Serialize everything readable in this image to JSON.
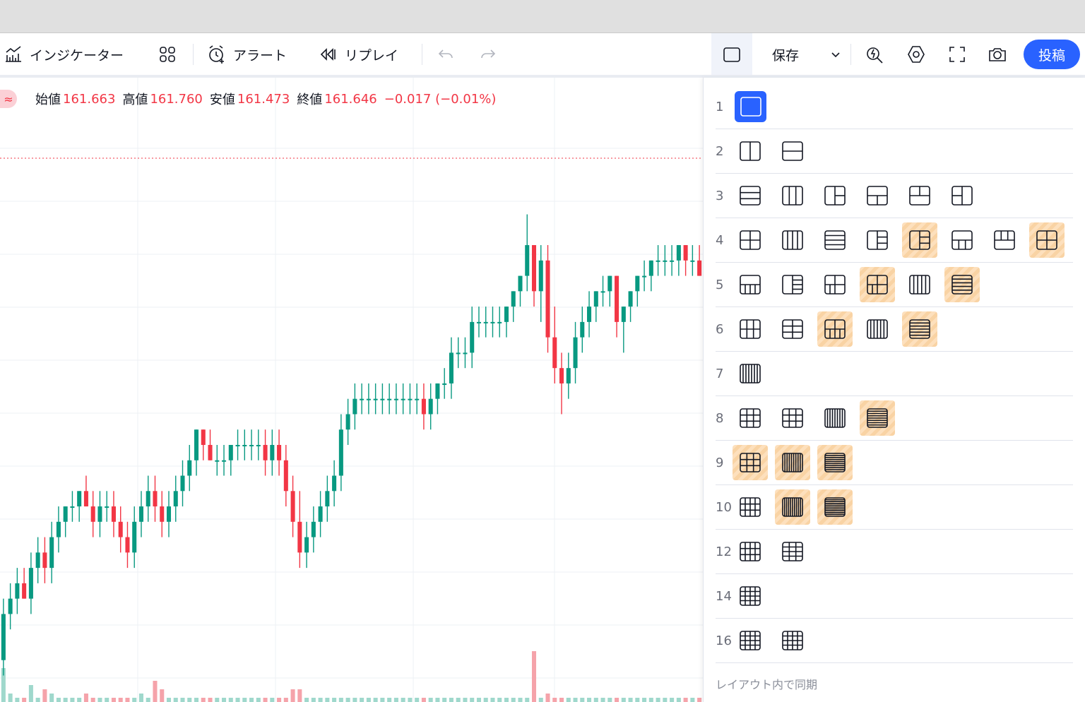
{
  "toolbar": {
    "indicators_label": "インジケーター",
    "alert_label": "アラート",
    "replay_label": "リプレイ",
    "save_label": "保存",
    "post_label": "投稿",
    "icons": [
      "indicators-icon",
      "templates-icon",
      "alert-icon",
      "replay-icon",
      "undo-icon",
      "redo-icon",
      "layout-single-icon",
      "chevron-down-icon",
      "quick-search-icon",
      "settings-icon",
      "fullscreen-icon",
      "camera-icon"
    ]
  },
  "legend": {
    "badge": "≈",
    "open_label": "始値",
    "open_value": "161.663",
    "high_label": "高値",
    "high_value": "161.760",
    "low_label": "安値",
    "low_value": "161.473",
    "close_label": "終値",
    "close_value": "161.646",
    "change": "−0.017 (−0.01%)"
  },
  "layout_panel": {
    "rows": [
      {
        "count": "1",
        "options": [
          {
            "icon": "single",
            "state": "active"
          }
        ]
      },
      {
        "count": "2",
        "options": [
          {
            "icon": "2v"
          },
          {
            "icon": "2h"
          }
        ]
      },
      {
        "count": "3",
        "options": [
          {
            "icon": "3h"
          },
          {
            "icon": "3v"
          },
          {
            "icon": "3-left-big"
          },
          {
            "icon": "3-top-big"
          },
          {
            "icon": "3-bottom-big"
          },
          {
            "icon": "3-right-big"
          }
        ]
      },
      {
        "count": "4",
        "options": [
          {
            "icon": "4grid"
          },
          {
            "icon": "4v"
          },
          {
            "icon": "4h"
          },
          {
            "icon": "4-left-big"
          },
          {
            "icon": "4-left-big-alt",
            "state": "locked"
          },
          {
            "icon": "4-top-big"
          },
          {
            "icon": "4-bottom-big"
          },
          {
            "icon": "4-mid-big",
            "state": "locked"
          }
        ]
      },
      {
        "count": "5",
        "options": [
          {
            "icon": "5-top-big"
          },
          {
            "icon": "5-left-big"
          },
          {
            "icon": "5-mixed"
          },
          {
            "icon": "5-mixed-alt",
            "state": "locked"
          },
          {
            "icon": "5v"
          },
          {
            "icon": "5h",
            "state": "locked"
          }
        ]
      },
      {
        "count": "6",
        "options": [
          {
            "icon": "6grid"
          },
          {
            "icon": "6grid-h"
          },
          {
            "icon": "6-mixed",
            "state": "locked"
          },
          {
            "icon": "6v"
          },
          {
            "icon": "6h",
            "state": "locked"
          }
        ]
      },
      {
        "count": "7",
        "options": [
          {
            "icon": "7v"
          }
        ]
      },
      {
        "count": "8",
        "options": [
          {
            "icon": "8grid"
          },
          {
            "icon": "8grid-h"
          },
          {
            "icon": "8v"
          },
          {
            "icon": "8h",
            "state": "locked"
          }
        ]
      },
      {
        "count": "9",
        "options": [
          {
            "icon": "9grid",
            "state": "locked"
          },
          {
            "icon": "9v",
            "state": "locked"
          },
          {
            "icon": "9h",
            "state": "locked"
          }
        ]
      },
      {
        "count": "10",
        "options": [
          {
            "icon": "10grid"
          },
          {
            "icon": "10v",
            "state": "locked"
          },
          {
            "icon": "10h",
            "state": "locked"
          }
        ]
      },
      {
        "count": "12",
        "options": [
          {
            "icon": "12grid"
          },
          {
            "icon": "12grid-h"
          }
        ]
      },
      {
        "count": "14",
        "options": [
          {
            "icon": "14grid"
          }
        ]
      },
      {
        "count": "16",
        "options": [
          {
            "icon": "16grid"
          },
          {
            "icon": "16grid-h"
          }
        ]
      }
    ],
    "sync_label": "レイアウト内で同期"
  },
  "colors": {
    "accent": "#2962ff",
    "up": "#089981",
    "down": "#f23645",
    "locked": "#fde0bd"
  },
  "chart_data": {
    "type": "candlestick",
    "y_range": [
      161.44,
      161.78
    ],
    "candles": [
      [
        161.47,
        161.51,
        161.46,
        161.5
      ],
      [
        161.5,
        161.52,
        161.49,
        161.51
      ],
      [
        161.51,
        161.53,
        161.5,
        161.52
      ],
      [
        161.52,
        161.53,
        161.51,
        161.51
      ],
      [
        161.51,
        161.54,
        161.5,
        161.53
      ],
      [
        161.53,
        161.55,
        161.52,
        161.54
      ],
      [
        161.54,
        161.55,
        161.52,
        161.53
      ],
      [
        161.53,
        161.56,
        161.52,
        161.55
      ],
      [
        161.55,
        161.57,
        161.54,
        161.56
      ],
      [
        161.56,
        161.57,
        161.55,
        161.57
      ],
      [
        161.57,
        161.58,
        161.56,
        161.57
      ],
      [
        161.57,
        161.58,
        161.56,
        161.58
      ],
      [
        161.58,
        161.59,
        161.57,
        161.57
      ],
      [
        161.57,
        161.58,
        161.55,
        161.56
      ],
      [
        161.56,
        161.58,
        161.55,
        161.57
      ],
      [
        161.57,
        161.58,
        161.56,
        161.57
      ],
      [
        161.57,
        161.58,
        161.55,
        161.56
      ],
      [
        161.56,
        161.57,
        161.54,
        161.55
      ],
      [
        161.55,
        161.56,
        161.53,
        161.54
      ],
      [
        161.54,
        161.57,
        161.53,
        161.56
      ],
      [
        161.56,
        161.58,
        161.55,
        161.57
      ],
      [
        161.57,
        161.59,
        161.56,
        161.58
      ],
      [
        161.58,
        161.59,
        161.56,
        161.57
      ],
      [
        161.57,
        161.58,
        161.55,
        161.56
      ],
      [
        161.56,
        161.58,
        161.55,
        161.57
      ],
      [
        161.57,
        161.59,
        161.56,
        161.58
      ],
      [
        161.58,
        161.6,
        161.57,
        161.59
      ],
      [
        161.59,
        161.61,
        161.58,
        161.6
      ],
      [
        161.6,
        161.62,
        161.59,
        161.62
      ],
      [
        161.62,
        161.62,
        161.6,
        161.61
      ],
      [
        161.61,
        161.62,
        161.6,
        161.6
      ],
      [
        161.6,
        161.61,
        161.59,
        161.6
      ],
      [
        161.6,
        161.61,
        161.59,
        161.6
      ],
      [
        161.6,
        161.61,
        161.59,
        161.61
      ],
      [
        161.61,
        161.62,
        161.6,
        161.61
      ],
      [
        161.61,
        161.62,
        161.6,
        161.61
      ],
      [
        161.61,
        161.62,
        161.6,
        161.61
      ],
      [
        161.61,
        161.62,
        161.6,
        161.61
      ],
      [
        161.61,
        161.62,
        161.59,
        161.6
      ],
      [
        161.6,
        161.62,
        161.59,
        161.61
      ],
      [
        161.61,
        161.62,
        161.59,
        161.6
      ],
      [
        161.6,
        161.61,
        161.57,
        161.58
      ],
      [
        161.58,
        161.59,
        161.55,
        161.56
      ],
      [
        161.56,
        161.58,
        161.53,
        161.54
      ],
      [
        161.54,
        161.56,
        161.53,
        161.55
      ],
      [
        161.55,
        161.57,
        161.54,
        161.56
      ],
      [
        161.56,
        161.58,
        161.55,
        161.57
      ],
      [
        161.57,
        161.59,
        161.56,
        161.58
      ],
      [
        161.58,
        161.6,
        161.57,
        161.59
      ],
      [
        161.59,
        161.63,
        161.58,
        161.62
      ],
      [
        161.62,
        161.64,
        161.61,
        161.63
      ],
      [
        161.63,
        161.65,
        161.62,
        161.64
      ],
      [
        161.64,
        161.65,
        161.63,
        161.64
      ],
      [
        161.64,
        161.65,
        161.63,
        161.64
      ],
      [
        161.64,
        161.65,
        161.63,
        161.64
      ],
      [
        161.64,
        161.65,
        161.63,
        161.64
      ],
      [
        161.64,
        161.65,
        161.63,
        161.64
      ],
      [
        161.64,
        161.65,
        161.63,
        161.64
      ],
      [
        161.64,
        161.65,
        161.63,
        161.64
      ],
      [
        161.64,
        161.65,
        161.63,
        161.64
      ],
      [
        161.64,
        161.65,
        161.63,
        161.64
      ],
      [
        161.64,
        161.65,
        161.62,
        161.63
      ],
      [
        161.63,
        161.65,
        161.62,
        161.64
      ],
      [
        161.64,
        161.65,
        161.63,
        161.65
      ],
      [
        161.65,
        161.66,
        161.64,
        161.65
      ],
      [
        161.65,
        161.68,
        161.64,
        161.67
      ],
      [
        161.67,
        161.68,
        161.66,
        161.67
      ],
      [
        161.67,
        161.68,
        161.66,
        161.67
      ],
      [
        161.67,
        161.7,
        161.66,
        161.69
      ],
      [
        161.69,
        161.7,
        161.68,
        161.69
      ],
      [
        161.69,
        161.7,
        161.68,
        161.69
      ],
      [
        161.69,
        161.7,
        161.68,
        161.69
      ],
      [
        161.69,
        161.7,
        161.68,
        161.69
      ],
      [
        161.69,
        161.7,
        161.68,
        161.7
      ],
      [
        161.7,
        161.71,
        161.69,
        161.71
      ],
      [
        161.71,
        161.72,
        161.7,
        161.72
      ],
      [
        161.72,
        161.76,
        161.71,
        161.74
      ],
      [
        161.74,
        161.74,
        161.7,
        161.71
      ],
      [
        161.71,
        161.74,
        161.69,
        161.73
      ],
      [
        161.73,
        161.74,
        161.67,
        161.68
      ],
      [
        161.68,
        161.7,
        161.65,
        161.66
      ],
      [
        161.66,
        161.67,
        161.63,
        161.65
      ],
      [
        161.65,
        161.67,
        161.64,
        161.66
      ],
      [
        161.66,
        161.69,
        161.65,
        161.68
      ],
      [
        161.68,
        161.7,
        161.67,
        161.69
      ],
      [
        161.69,
        161.71,
        161.68,
        161.7
      ],
      [
        161.7,
        161.71,
        161.69,
        161.71
      ],
      [
        161.71,
        161.72,
        161.7,
        161.71
      ],
      [
        161.71,
        161.72,
        161.7,
        161.72
      ],
      [
        161.72,
        161.72,
        161.68,
        161.69
      ],
      [
        161.69,
        161.7,
        161.67,
        161.7
      ],
      [
        161.7,
        161.71,
        161.69,
        161.71
      ],
      [
        161.71,
        161.72,
        161.7,
        161.72
      ],
      [
        161.72,
        161.73,
        161.71,
        161.72
      ],
      [
        161.72,
        161.73,
        161.71,
        161.73
      ],
      [
        161.73,
        161.74,
        161.72,
        161.73
      ],
      [
        161.73,
        161.74,
        161.72,
        161.73
      ],
      [
        161.73,
        161.74,
        161.72,
        161.73
      ],
      [
        161.73,
        161.74,
        161.72,
        161.74
      ],
      [
        161.74,
        161.74,
        161.72,
        161.73
      ],
      [
        161.73,
        161.74,
        161.72,
        161.73
      ],
      [
        161.73,
        161.74,
        161.72,
        161.72
      ]
    ],
    "volumes": [
      8,
      2,
      1,
      1,
      4,
      1,
      3,
      2,
      1,
      1,
      1,
      1,
      2,
      1,
      1,
      1,
      1,
      1,
      1,
      1,
      2,
      1,
      5,
      3,
      1,
      1,
      1,
      1,
      1,
      1,
      1,
      1,
      1,
      1,
      1,
      1,
      1,
      1,
      1,
      1,
      1,
      1,
      3,
      3,
      1,
      1,
      1,
      1,
      1,
      1,
      1,
      1,
      1,
      1,
      1,
      1,
      1,
      1,
      1,
      1,
      1,
      1,
      1,
      1,
      1,
      1,
      1,
      1,
      1,
      1,
      1,
      1,
      1,
      1,
      1,
      1,
      1,
      12,
      1,
      2,
      1,
      1,
      1,
      1,
      1,
      1,
      1,
      1,
      1,
      1,
      1,
      1,
      1,
      1,
      1,
      1,
      1,
      1,
      1,
      1,
      1,
      1
    ]
  }
}
